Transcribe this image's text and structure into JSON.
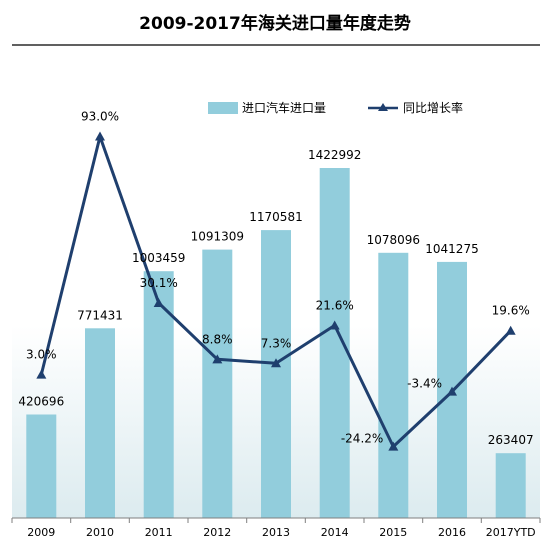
{
  "chart_data": {
    "type": "bar",
    "title": "2009-2017年海关进口量年度走势",
    "categories": [
      "2009",
      "2010",
      "2011",
      "2012",
      "2013",
      "2014",
      "2015",
      "2016",
      "2017YTD"
    ],
    "series": [
      {
        "name": "进口汽车进口量",
        "type": "bar",
        "values": [
          420696,
          771431,
          1003459,
          1091309,
          1170581,
          1422992,
          1078096,
          1041275,
          263407
        ],
        "labels": [
          "420696",
          "771431",
          "1003459",
          "1091309",
          "1170581",
          "1422992",
          "1078096",
          "1041275",
          "263407"
        ]
      },
      {
        "name": "同比增长率",
        "type": "line",
        "values": [
          3.0,
          93.0,
          30.1,
          8.8,
          7.3,
          21.6,
          -24.2,
          -3.4,
          19.6
        ],
        "labels": [
          "3.0%",
          "93.0%",
          "30.1%",
          "8.8%",
          "7.3%",
          "21.6%",
          "-24.2%",
          "-3.4%",
          "19.6%"
        ]
      }
    ],
    "y_bar_range": [
      0,
      1500000
    ],
    "y_line_range": [
      -30,
      100
    ],
    "legend_position": "top-right",
    "grid": false,
    "colors": {
      "bar": "#92CDDC",
      "line": "#1F3F6E",
      "background_gradient_bottom": "#DCEBEF"
    }
  }
}
